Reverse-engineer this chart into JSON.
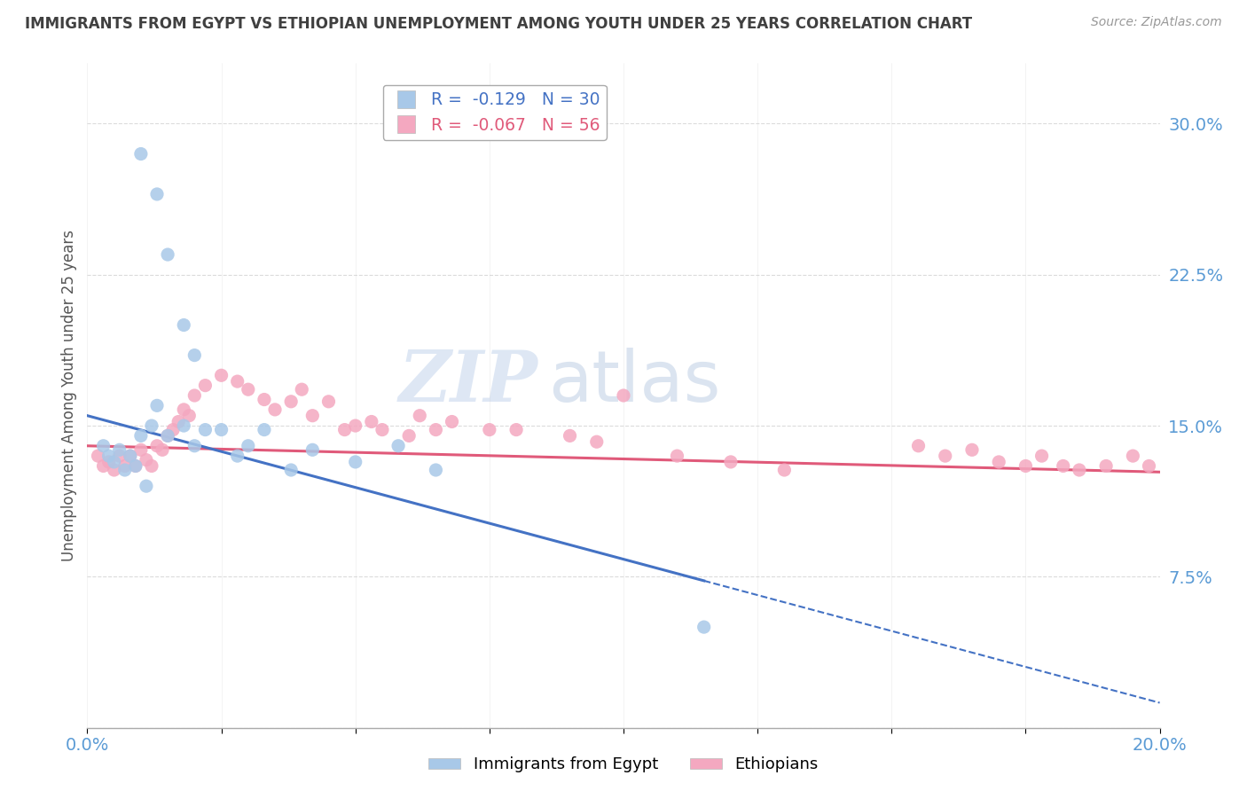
{
  "title": "IMMIGRANTS FROM EGYPT VS ETHIOPIAN UNEMPLOYMENT AMONG YOUTH UNDER 25 YEARS CORRELATION CHART",
  "source": "Source: ZipAtlas.com",
  "ylabel": "Unemployment Among Youth under 25 years",
  "xlim": [
    0.0,
    0.2
  ],
  "ylim": [
    0.0,
    0.33
  ],
  "xticks": [
    0.0,
    0.025,
    0.05,
    0.075,
    0.1,
    0.125,
    0.15,
    0.175,
    0.2
  ],
  "yticks": [
    0.0,
    0.075,
    0.15,
    0.225,
    0.3
  ],
  "yticklabels": [
    "",
    "7.5%",
    "15.0%",
    "22.5%",
    "30.0%"
  ],
  "legend_blue_label": "R =  -0.129   N = 30",
  "legend_pink_label": "R =  -0.067   N = 56",
  "blue_color": "#a8c8e8",
  "pink_color": "#f4a8c0",
  "line_blue_color": "#4472c4",
  "line_pink_color": "#e05a7a",
  "watermark_zip": "ZIP",
  "watermark_atlas": "atlas",
  "grid_color": "#cccccc",
  "background_color": "#ffffff",
  "title_color": "#404040",
  "axis_label_color": "#5b9bd5",
  "blue_scatter_x": [
    0.01,
    0.013,
    0.015,
    0.018,
    0.02,
    0.003,
    0.004,
    0.005,
    0.006,
    0.007,
    0.008,
    0.009,
    0.01,
    0.011,
    0.012,
    0.013,
    0.015,
    0.018,
    0.02,
    0.022,
    0.025,
    0.028,
    0.03,
    0.033,
    0.038,
    0.042,
    0.05,
    0.058,
    0.065,
    0.115
  ],
  "blue_scatter_y": [
    0.285,
    0.265,
    0.235,
    0.2,
    0.185,
    0.14,
    0.135,
    0.132,
    0.138,
    0.128,
    0.135,
    0.13,
    0.145,
    0.12,
    0.15,
    0.16,
    0.145,
    0.15,
    0.14,
    0.148,
    0.148,
    0.135,
    0.14,
    0.148,
    0.128,
    0.138,
    0.132,
    0.14,
    0.128,
    0.05
  ],
  "pink_scatter_x": [
    0.002,
    0.003,
    0.004,
    0.005,
    0.006,
    0.007,
    0.008,
    0.009,
    0.01,
    0.011,
    0.012,
    0.013,
    0.014,
    0.015,
    0.016,
    0.017,
    0.018,
    0.019,
    0.02,
    0.022,
    0.025,
    0.028,
    0.03,
    0.033,
    0.035,
    0.038,
    0.04,
    0.042,
    0.045,
    0.048,
    0.05,
    0.053,
    0.055,
    0.06,
    0.062,
    0.065,
    0.068,
    0.075,
    0.08,
    0.09,
    0.095,
    0.1,
    0.11,
    0.12,
    0.13,
    0.155,
    0.16,
    0.165,
    0.17,
    0.175,
    0.178,
    0.182,
    0.185,
    0.19,
    0.195,
    0.198
  ],
  "pink_scatter_y": [
    0.135,
    0.13,
    0.132,
    0.128,
    0.135,
    0.13,
    0.135,
    0.13,
    0.138,
    0.133,
    0.13,
    0.14,
    0.138,
    0.145,
    0.148,
    0.152,
    0.158,
    0.155,
    0.165,
    0.17,
    0.175,
    0.172,
    0.168,
    0.163,
    0.158,
    0.162,
    0.168,
    0.155,
    0.162,
    0.148,
    0.15,
    0.152,
    0.148,
    0.145,
    0.155,
    0.148,
    0.152,
    0.148,
    0.148,
    0.145,
    0.142,
    0.165,
    0.135,
    0.132,
    0.128,
    0.14,
    0.135,
    0.138,
    0.132,
    0.13,
    0.135,
    0.13,
    0.128,
    0.13,
    0.135,
    0.13
  ]
}
